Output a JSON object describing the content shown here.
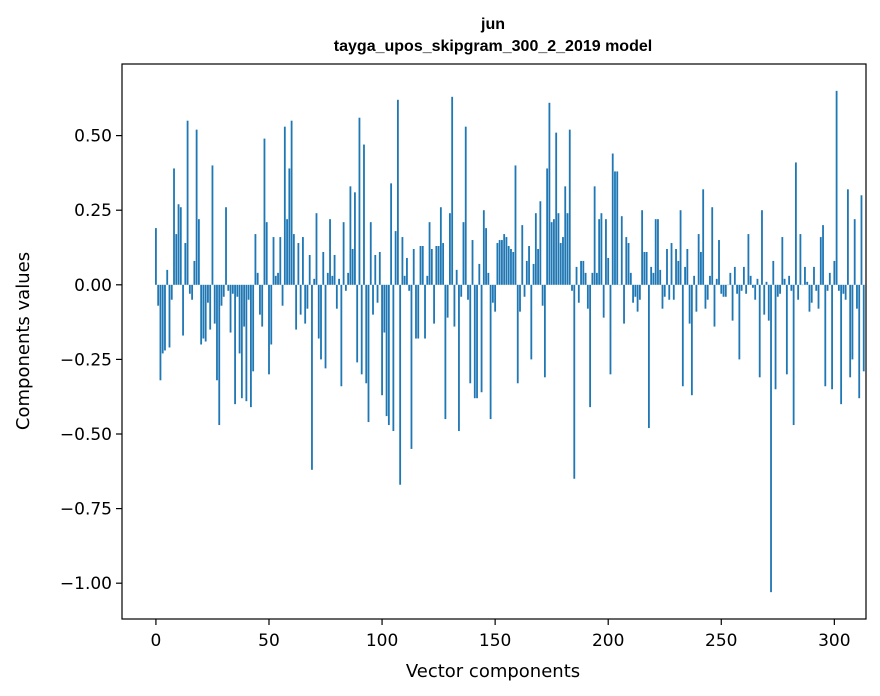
{
  "chart_data": {
    "type": "bar",
    "title": "jun",
    "subtitle": "tayga_upos_skipgram_300_2_2019 model",
    "xlabel": "Vector components",
    "ylabel": "Components values",
    "xlim": [
      -15,
      314
    ],
    "ylim": [
      -1.12,
      0.74
    ],
    "x_ticks": [
      0,
      50,
      100,
      150,
      200,
      250,
      300
    ],
    "x_tick_labels": [
      "0",
      "50",
      "100",
      "150",
      "200",
      "250",
      "300"
    ],
    "y_ticks": [
      0.5,
      0.25,
      0.0,
      -0.25,
      -0.5,
      -0.75,
      -1.0
    ],
    "y_tick_labels": [
      "0.50",
      "0.25",
      "0.00",
      "−0.25",
      "−0.50",
      "−0.75",
      "−1.00"
    ],
    "grid": false,
    "bar_color": "#1f77b4",
    "values": [
      0.19,
      -0.07,
      -0.32,
      -0.23,
      -0.22,
      0.05,
      -0.21,
      -0.05,
      0.39,
      0.17,
      0.27,
      0.26,
      -0.17,
      0.14,
      0.55,
      -0.03,
      -0.05,
      0.08,
      0.52,
      0.22,
      -0.2,
      -0.18,
      -0.19,
      -0.06,
      -0.15,
      0.4,
      -0.13,
      -0.32,
      -0.47,
      -0.07,
      -0.04,
      0.26,
      -0.02,
      -0.16,
      -0.03,
      -0.4,
      -0.04,
      -0.23,
      -0.38,
      -0.14,
      -0.39,
      -0.05,
      -0.41,
      -0.29,
      0.17,
      0.04,
      -0.1,
      -0.14,
      0.49,
      0.21,
      -0.3,
      -0.2,
      0.16,
      0.03,
      0.04,
      0.16,
      -0.07,
      0.53,
      0.22,
      0.39,
      0.55,
      0.17,
      -0.15,
      0.14,
      -0.1,
      0.16,
      -0.13,
      -0.08,
      0.1,
      -0.62,
      0.02,
      0.24,
      -0.18,
      -0.25,
      0.11,
      -0.28,
      0.04,
      0.22,
      0.03,
      0.1,
      -0.08,
      0.02,
      -0.34,
      0.21,
      -0.02,
      0.04,
      0.33,
      0.12,
      0.31,
      -0.26,
      0.56,
      -0.3,
      0.47,
      -0.33,
      -0.46,
      0.21,
      -0.1,
      0.1,
      -0.06,
      0.11,
      -0.37,
      -0.16,
      -0.44,
      -0.47,
      0.34,
      -0.49,
      0.18,
      0.62,
      -0.67,
      0.16,
      0.03,
      0.09,
      -0.02,
      -0.55,
      0.12,
      -0.18,
      -0.18,
      0.13,
      0.13,
      -0.18,
      0.03,
      0.21,
      0.12,
      -0.13,
      0.13,
      0.13,
      0.26,
      0.14,
      -0.45,
      -0.11,
      0.24,
      0.63,
      -0.14,
      0.05,
      -0.49,
      -0.04,
      0.21,
      0.53,
      -0.05,
      -0.33,
      0.15,
      -0.38,
      -0.38,
      0.07,
      -0.36,
      0.25,
      0.19,
      0.04,
      -0.45,
      -0.06,
      -0.09,
      0.14,
      0.15,
      0.15,
      0.17,
      0.16,
      0.13,
      0.12,
      0.11,
      0.4,
      -0.33,
      -0.09,
      0.2,
      -0.04,
      0.08,
      0.13,
      -0.25,
      0.07,
      0.24,
      0.12,
      0.28,
      -0.07,
      -0.31,
      0.39,
      0.61,
      0.21,
      0.22,
      0.51,
      0.24,
      0.14,
      0.16,
      0.33,
      0.24,
      0.52,
      -0.02,
      -0.65,
      0.06,
      -0.06,
      0.08,
      0.08,
      0.04,
      -0.08,
      -0.41,
      0.04,
      0.33,
      0.04,
      0.22,
      0.24,
      -0.11,
      0.22,
      0.09,
      -0.3,
      0.44,
      0.38,
      0.38,
      0.0,
      0.23,
      -0.13,
      0.16,
      0.14,
      0.04,
      -0.06,
      -0.04,
      -0.09,
      -0.05,
      0.25,
      0.11,
      0.11,
      -0.48,
      0.06,
      0.04,
      0.22,
      0.22,
      0.05,
      -0.08,
      -0.04,
      0.12,
      -0.05,
      0.14,
      -0.05,
      0.12,
      0.08,
      0.25,
      -0.34,
      0.06,
      0.12,
      -0.13,
      -0.37,
      0.03,
      -0.09,
      0.17,
      0.11,
      0.32,
      -0.08,
      -0.05,
      0.03,
      0.26,
      -0.14,
      0.02,
      0.15,
      -0.03,
      -0.04,
      -0.04,
      0.0,
      0.04,
      -0.12,
      0.06,
      -0.03,
      -0.25,
      -0.02,
      0.06,
      -0.03,
      0.17,
      0.03,
      -0.01,
      -0.05,
      0.02,
      -0.31,
      0.25,
      -0.1,
      0.01,
      -0.12,
      -1.03,
      0.08,
      -0.35,
      -0.04,
      -0.03,
      0.16,
      0.02,
      -0.3,
      0.03,
      -0.02,
      -0.47,
      0.41,
      -0.05,
      0.17,
      0.0,
      0.06,
      0.01,
      -0.09,
      -0.06,
      0.06,
      -0.02,
      -0.08,
      0.16,
      0.2,
      -0.34,
      -0.02,
      0.04,
      -0.35,
      0.08,
      0.65,
      -0.02,
      -0.4,
      -0.03,
      -0.05,
      0.32,
      -0.31,
      -0.25,
      0.22,
      -0.08,
      -0.38,
      0.3,
      -0.29
    ]
  }
}
